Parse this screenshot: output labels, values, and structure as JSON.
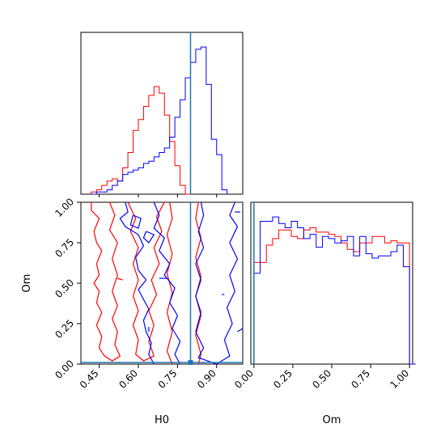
{
  "chart_data": {
    "type": "corner",
    "parameters": [
      "H0",
      "Om"
    ],
    "truths": {
      "H0": 0.8,
      "Om": 0.0
    },
    "colors": {
      "red": "#ff0000",
      "blue": "#0000ff",
      "truth": "#1f77b4"
    },
    "panels": {
      "h0_hist": {
        "type": "step-histogram",
        "xlim": [
          0.38,
          1.0
        ],
        "bin_width": 0.02,
        "series": [
          {
            "color": "red",
            "bin_start": 0.42,
            "counts": [
              1,
              2,
              4,
              6,
              7,
              6,
              12,
              19,
              29,
              34,
              40,
              45,
              49,
              46,
              36,
              24,
              13,
              4,
              0
            ]
          },
          {
            "color": "blue",
            "bin_start": 0.42,
            "counts": [
              0,
              1,
              1,
              2,
              4,
              6,
              9,
              10,
              11,
              12,
              14,
              15,
              17,
              19,
              21,
              26,
              35,
              43,
              53,
              60,
              66,
              67,
              50,
              25,
              18,
              2
            ]
          }
        ]
      },
      "om_hist": {
        "type": "step-histogram",
        "xlim": [
          -0.02,
          1.02
        ],
        "bin_width": 0.04,
        "series": [
          {
            "color": "red",
            "bin_start": 0.0,
            "counts": [
              47,
              47,
              55,
              58,
              62,
              62,
              59,
              58,
              62,
              63,
              61,
              61,
              60,
              59,
              56,
              53,
              52,
              56,
              56,
              59,
              59,
              56,
              57,
              56,
              56,
              0
            ]
          },
          {
            "color": "blue",
            "bin_start": 0.0,
            "counts": [
              42,
              66,
              66,
              68,
              65,
              63,
              66,
              63,
              58,
              60,
              54,
              59,
              58,
              56,
              57,
              59,
              50,
              59,
              51,
              49,
              50,
              50,
              52,
              55,
              45,
              0
            ]
          }
        ]
      },
      "joint": {
        "xlim": [
          0.38,
          1.0
        ],
        "ylim": [
          0.0,
          1.0
        ],
        "contours": [
          {
            "color": "red",
            "points": [
              [
                0.42,
                1.0
              ],
              [
                0.42,
                0.95
              ],
              [
                0.45,
                0.9
              ],
              [
                0.43,
                0.82
              ],
              [
                0.44,
                0.75
              ],
              [
                0.46,
                0.7
              ],
              [
                0.44,
                0.62
              ],
              [
                0.45,
                0.55
              ],
              [
                0.43,
                0.5
              ],
              [
                0.45,
                0.45
              ],
              [
                0.44,
                0.38
              ],
              [
                0.46,
                0.32
              ],
              [
                0.44,
                0.24
              ],
              [
                0.46,
                0.17
              ],
              [
                0.45,
                0.1
              ],
              [
                0.47,
                0.05
              ],
              [
                0.5,
                0.02
              ],
              [
                0.53,
                0.05
              ],
              [
                0.51,
                0.12
              ],
              [
                0.52,
                0.2
              ],
              [
                0.5,
                0.28
              ],
              [
                0.52,
                0.36
              ],
              [
                0.5,
                0.45
              ],
              [
                0.52,
                0.55
              ],
              [
                0.5,
                0.65
              ],
              [
                0.52,
                0.75
              ],
              [
                0.49,
                0.83
              ],
              [
                0.51,
                0.92
              ],
              [
                0.49,
                1.0
              ]
            ]
          },
          {
            "color": "red",
            "points": [
              [
                0.56,
                1.0
              ],
              [
                0.59,
                0.9
              ],
              [
                0.57,
                0.82
              ],
              [
                0.6,
                0.72
              ],
              [
                0.58,
                0.62
              ],
              [
                0.6,
                0.52
              ],
              [
                0.58,
                0.42
              ],
              [
                0.6,
                0.33
              ],
              [
                0.58,
                0.24
              ],
              [
                0.6,
                0.15
              ],
              [
                0.59,
                0.06
              ],
              [
                0.62,
                0.02
              ],
              [
                0.66,
                0.05
              ],
              [
                0.64,
                0.14
              ],
              [
                0.66,
                0.24
              ],
              [
                0.64,
                0.33
              ],
              [
                0.67,
                0.43
              ],
              [
                0.65,
                0.52
              ],
              [
                0.68,
                0.62
              ],
              [
                0.66,
                0.72
              ],
              [
                0.69,
                0.82
              ],
              [
                0.67,
                0.91
              ],
              [
                0.7,
                1.0
              ]
            ]
          },
          {
            "color": "red",
            "points": [
              [
                0.72,
                1.0
              ],
              [
                0.73,
                0.9
              ],
              [
                0.71,
                0.8
              ],
              [
                0.73,
                0.68
              ],
              [
                0.71,
                0.56
              ],
              [
                0.73,
                0.44
              ],
              [
                0.71,
                0.32
              ],
              [
                0.73,
                0.2
              ],
              [
                0.71,
                0.08
              ],
              [
                0.73,
                0.0
              ]
            ]
          },
          {
            "color": "red",
            "points": [
              [
                0.83,
                1.0
              ],
              [
                0.82,
                0.9
              ],
              [
                0.84,
                0.78
              ],
              [
                0.82,
                0.66
              ],
              [
                0.84,
                0.54
              ],
              [
                0.82,
                0.42
              ],
              [
                0.84,
                0.3
              ],
              [
                0.82,
                0.18
              ],
              [
                0.84,
                0.06
              ],
              [
                0.83,
                0.0
              ]
            ]
          },
          {
            "color": "blue",
            "points": [
              [
                0.55,
                1.0
              ],
              [
                0.56,
                0.94
              ],
              [
                0.53,
                0.9
              ],
              [
                0.55,
                0.85
              ],
              [
                0.6,
                0.8
              ],
              [
                0.62,
                0.73
              ],
              [
                0.59,
                0.66
              ],
              [
                0.6,
                0.58
              ],
              [
                0.63,
                0.52
              ],
              [
                0.6,
                0.46
              ],
              [
                0.62,
                0.4
              ],
              [
                0.64,
                0.34
              ],
              [
                0.62,
                0.27
              ],
              [
                0.63,
                0.2
              ],
              [
                0.65,
                0.13
              ],
              [
                0.64,
                0.06
              ],
              [
                0.66,
                0.0
              ]
            ]
          },
          {
            "color": "blue",
            "points": [
              [
                0.66,
                1.0
              ],
              [
                0.68,
                0.92
              ],
              [
                0.66,
                0.84
              ],
              [
                0.7,
                0.78
              ],
              [
                0.68,
                0.7
              ],
              [
                0.72,
                0.62
              ],
              [
                0.7,
                0.55
              ],
              [
                0.74,
                0.47
              ],
              [
                0.72,
                0.38
              ],
              [
                0.75,
                0.3
              ],
              [
                0.73,
                0.22
              ],
              [
                0.76,
                0.14
              ],
              [
                0.74,
                0.06
              ],
              [
                0.76,
                0.0
              ]
            ]
          },
          {
            "color": "blue",
            "points": [
              [
                0.84,
                1.0
              ],
              [
                0.85,
                0.92
              ],
              [
                0.83,
                0.82
              ],
              [
                0.85,
                0.72
              ],
              [
                0.82,
                0.62
              ],
              [
                0.84,
                0.52
              ],
              [
                0.82,
                0.42
              ],
              [
                0.84,
                0.32
              ],
              [
                0.82,
                0.2
              ],
              [
                0.85,
                0.1
              ],
              [
                0.83,
                0.04
              ],
              [
                0.9,
                0.0
              ],
              [
                0.95,
                0.05
              ],
              [
                0.93,
                0.15
              ],
              [
                0.96,
                0.25
              ],
              [
                0.94,
                0.35
              ],
              [
                0.97,
                0.45
              ],
              [
                0.95,
                0.55
              ],
              [
                0.98,
                0.65
              ],
              [
                0.95,
                0.75
              ],
              [
                0.98,
                0.85
              ],
              [
                0.95,
                0.92
              ],
              [
                0.97,
                1.0
              ]
            ]
          },
          {
            "color": "blue",
            "points": [
              [
                0.58,
                0.92
              ],
              [
                0.61,
                0.9
              ],
              [
                0.6,
                0.84
              ],
              [
                0.57,
                0.86
              ],
              [
                0.58,
                0.92
              ]
            ]
          },
          {
            "color": "blue",
            "points": [
              [
                0.63,
                0.82
              ],
              [
                0.66,
                0.8
              ],
              [
                0.64,
                0.75
              ],
              [
                0.62,
                0.78
              ],
              [
                0.63,
                0.82
              ]
            ]
          },
          {
            "color": "blue",
            "points": [
              [
                0.98,
                0.2
              ],
              [
                1.0,
                0.22
              ]
            ]
          },
          {
            "color": "blue",
            "points": [
              [
                0.97,
                0.94
              ],
              [
                0.99,
                0.94
              ]
            ]
          },
          {
            "color": "blue",
            "points": [
              [
                0.92,
                0.43
              ],
              [
                0.93,
                0.43
              ]
            ]
          },
          {
            "color": "blue",
            "points": [
              [
                0.68,
                0.53
              ],
              [
                0.71,
                0.53
              ]
            ]
          },
          {
            "color": "blue",
            "points": [
              [
                0.64,
                0.2
              ],
              [
                0.64,
                0.23
              ]
            ]
          },
          {
            "color": "red",
            "points": [
              [
                0.52,
                0.53
              ],
              [
                0.54,
                0.52
              ]
            ]
          }
        ]
      }
    },
    "x_axis_labels": {
      "h0": "H0",
      "om": "Om"
    },
    "y_axis_label": "Om",
    "h0_ticks": [
      "0.45",
      "0.60",
      "0.75",
      "0.90"
    ],
    "h0_tick_values": [
      0.45,
      0.6,
      0.75,
      0.9
    ],
    "om_ticks": [
      "0.00",
      "0.25",
      "0.50",
      "0.75",
      "1.00"
    ],
    "om_tick_values": [
      0.0,
      0.25,
      0.5,
      0.75,
      1.0
    ]
  }
}
